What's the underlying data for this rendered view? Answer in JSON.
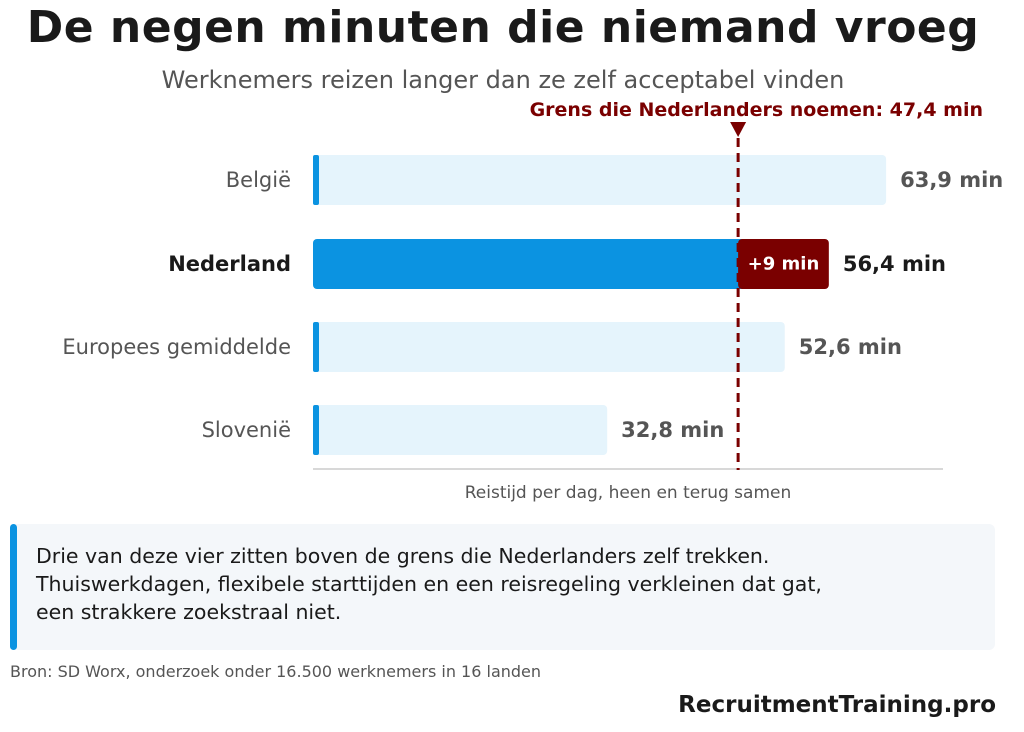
{
  "header": {
    "title": "De negen minuten die niemand vroeg",
    "subtitle": "Werknemers reizen langer dan ze zelf acceptabel vinden"
  },
  "chart_data": {
    "type": "bar",
    "orientation": "horizontal",
    "unit": "min",
    "categories": [
      "België",
      "Nederland",
      "Europees gemiddelde",
      "Slovenië"
    ],
    "values": [
      63.9,
      56.4,
      52.6,
      32.8
    ],
    "value_labels": [
      "63,9 min",
      "56,4 min",
      "52,6 min",
      "32,8 min"
    ],
    "highlight": "Nederland",
    "xlabel": "Reistijd per dag, heen en terug samen",
    "xlim": [
      0,
      64
    ],
    "threshold": {
      "value": 47.4,
      "label": "Grens die Nederlanders noemen: 47,4 min"
    },
    "excess": {
      "category": "Nederland",
      "from": 47.4,
      "to": 56.4,
      "label": "+9 min"
    },
    "grid": false,
    "legend": "none"
  },
  "colors": {
    "accent": "#0b93e1",
    "bar_muted": "#e5f4fc",
    "excess": "#7a0000",
    "threshold": "#7a0000",
    "label_muted": "#555555",
    "label_strong": "#1a1a1a"
  },
  "callout": {
    "lines": [
      "Drie van deze vier zitten boven de grens die Nederlanders zelf trekken.",
      "Thuiswerkdagen, flexibele starttijden en een reisregeling verkleinen dat gat,",
      "een strakkere zoekstraal niet."
    ]
  },
  "footer": {
    "source": "Bron: SD Worx, onderzoek onder 16.500 werknemers in 16 landen",
    "brand": "RecruitmentTraining.pro"
  }
}
